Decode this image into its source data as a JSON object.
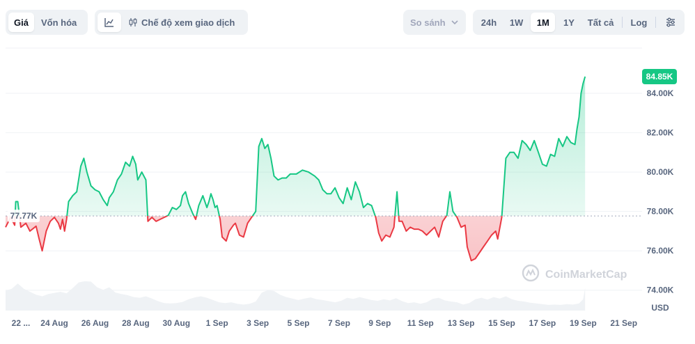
{
  "toolbar": {
    "tabs": [
      {
        "label": "Giá",
        "active": true
      },
      {
        "label": "Vốn hóa",
        "active": false
      }
    ],
    "mode_label": "Chế độ xem giao dịch",
    "compare_label": "So sánh",
    "ranges": [
      {
        "label": "24h",
        "active": false
      },
      {
        "label": "1W",
        "active": false
      },
      {
        "label": "1M",
        "active": true
      },
      {
        "label": "1Y",
        "active": false
      },
      {
        "label": "Tất cả",
        "active": false
      }
    ],
    "log_label": "Log"
  },
  "watermark": "CoinMarketCap",
  "chart_data": {
    "type": "area",
    "currency_label": "USD",
    "baseline_label": "77.77K",
    "baseline": 77770,
    "last_label": "84.85K",
    "last_value": 84850,
    "ylim": [
      73000,
      86300
    ],
    "yticks": [
      {
        "value": 74000,
        "label": "74.00K"
      },
      {
        "value": 76000,
        "label": "76.00K"
      },
      {
        "value": 78000,
        "label": "78.00K"
      },
      {
        "value": 80000,
        "label": "80.00K"
      },
      {
        "value": 82000,
        "label": "82.00K"
      },
      {
        "value": 84000,
        "label": "84.00K"
      }
    ],
    "xticks": [
      {
        "t": 0.5,
        "label": "22 ..."
      },
      {
        "t": 2.4,
        "label": "24 Aug"
      },
      {
        "t": 4.4,
        "label": "26 Aug"
      },
      {
        "t": 6.4,
        "label": "28 Aug"
      },
      {
        "t": 8.4,
        "label": "30 Aug"
      },
      {
        "t": 10.4,
        "label": "1 Sep"
      },
      {
        "t": 12.4,
        "label": "3 Sep"
      },
      {
        "t": 14.4,
        "label": "5 Sep"
      },
      {
        "t": 16.4,
        "label": "7 Sep"
      },
      {
        "t": 18.4,
        "label": "9 Sep"
      },
      {
        "t": 20.4,
        "label": "11 Sep"
      },
      {
        "t": 22.4,
        "label": "13 Sep"
      },
      {
        "t": 24.4,
        "label": "15 Sep"
      },
      {
        "t": 26.4,
        "label": "17 Sep"
      },
      {
        "t": 28.4,
        "label": "19 Sep"
      },
      {
        "t": 30.4,
        "label": "21 Sep"
      }
    ],
    "t_range": [
      0,
      31.3
    ],
    "price": [
      [
        0.0,
        77200
      ],
      [
        0.25,
        77700
      ],
      [
        0.45,
        77300
      ],
      [
        0.5,
        78500
      ],
      [
        0.6,
        78500
      ],
      [
        0.75,
        77200
      ],
      [
        1.0,
        77400
      ],
      [
        1.2,
        77000
      ],
      [
        1.5,
        77250
      ],
      [
        1.65,
        76600
      ],
      [
        1.8,
        76000
      ],
      [
        2.0,
        77000
      ],
      [
        2.2,
        77500
      ],
      [
        2.4,
        77700
      ],
      [
        2.6,
        77400
      ],
      [
        2.7,
        77100
      ],
      [
        2.8,
        77600
      ],
      [
        2.9,
        77000
      ],
      [
        3.0,
        77600
      ],
      [
        3.1,
        78500
      ],
      [
        3.3,
        78800
      ],
      [
        3.5,
        79000
      ],
      [
        3.7,
        80300
      ],
      [
        3.85,
        80700
      ],
      [
        4.0,
        80000
      ],
      [
        4.2,
        79300
      ],
      [
        4.4,
        79100
      ],
      [
        4.6,
        79000
      ],
      [
        4.8,
        78600
      ],
      [
        5.0,
        78300
      ],
      [
        5.1,
        78700
      ],
      [
        5.3,
        79000
      ],
      [
        5.5,
        79600
      ],
      [
        5.7,
        79900
      ],
      [
        5.9,
        80500
      ],
      [
        6.1,
        80300
      ],
      [
        6.25,
        80800
      ],
      [
        6.4,
        80400
      ],
      [
        6.5,
        79600
      ],
      [
        6.7,
        80000
      ],
      [
        6.9,
        79600
      ],
      [
        7.0,
        77500
      ],
      [
        7.2,
        77700
      ],
      [
        7.4,
        77500
      ],
      [
        7.6,
        77600
      ],
      [
        7.8,
        77700
      ],
      [
        8.0,
        77800
      ],
      [
        8.2,
        78200
      ],
      [
        8.4,
        78100
      ],
      [
        8.6,
        78300
      ],
      [
        8.7,
        78800
      ],
      [
        8.85,
        79000
      ],
      [
        9.0,
        78400
      ],
      [
        9.2,
        77900
      ],
      [
        9.35,
        77600
      ],
      [
        9.5,
        78300
      ],
      [
        9.7,
        78800
      ],
      [
        9.9,
        78200
      ],
      [
        10.0,
        78500
      ],
      [
        10.1,
        78900
      ],
      [
        10.2,
        78600
      ],
      [
        10.3,
        78200
      ],
      [
        10.4,
        78300
      ],
      [
        10.55,
        77600
      ],
      [
        10.65,
        76700
      ],
      [
        10.85,
        76500
      ],
      [
        11.0,
        77000
      ],
      [
        11.2,
        77300
      ],
      [
        11.3,
        77400
      ],
      [
        11.5,
        76800
      ],
      [
        11.7,
        76700
      ],
      [
        11.9,
        77400
      ],
      [
        12.1,
        77700
      ],
      [
        12.3,
        78000
      ],
      [
        12.45,
        81300
      ],
      [
        12.6,
        81700
      ],
      [
        12.75,
        81200
      ],
      [
        12.9,
        81400
      ],
      [
        13.05,
        80700
      ],
      [
        13.2,
        79800
      ],
      [
        13.4,
        79600
      ],
      [
        13.6,
        79700
      ],
      [
        13.8,
        79700
      ],
      [
        14.0,
        79900
      ],
      [
        14.3,
        79900
      ],
      [
        14.6,
        80100
      ],
      [
        14.9,
        80000
      ],
      [
        15.2,
        79800
      ],
      [
        15.4,
        79600
      ],
      [
        15.6,
        79100
      ],
      [
        15.8,
        78900
      ],
      [
        16.0,
        78900
      ],
      [
        16.2,
        79200
      ],
      [
        16.4,
        78700
      ],
      [
        16.6,
        78400
      ],
      [
        16.8,
        79200
      ],
      [
        17.0,
        78600
      ],
      [
        17.2,
        79500
      ],
      [
        17.4,
        79000
      ],
      [
        17.6,
        78200
      ],
      [
        17.8,
        78400
      ],
      [
        18.0,
        78300
      ],
      [
        18.2,
        77700
      ],
      [
        18.35,
        76900
      ],
      [
        18.5,
        76500
      ],
      [
        18.7,
        76800
      ],
      [
        18.9,
        76700
      ],
      [
        19.1,
        77200
      ],
      [
        19.25,
        79000
      ],
      [
        19.35,
        77500
      ],
      [
        19.5,
        77500
      ],
      [
        19.7,
        77000
      ],
      [
        19.9,
        77200
      ],
      [
        20.1,
        77100
      ],
      [
        20.3,
        77100
      ],
      [
        20.5,
        77000
      ],
      [
        20.7,
        76800
      ],
      [
        20.9,
        77000
      ],
      [
        21.1,
        77200
      ],
      [
        21.3,
        76700
      ],
      [
        21.5,
        77500
      ],
      [
        21.7,
        77800
      ],
      [
        21.85,
        79000
      ],
      [
        22.0,
        78000
      ],
      [
        22.2,
        77700
      ],
      [
        22.4,
        77200
      ],
      [
        22.6,
        77300
      ],
      [
        22.7,
        76200
      ],
      [
        22.9,
        75500
      ],
      [
        23.1,
        75600
      ],
      [
        23.3,
        75900
      ],
      [
        23.5,
        76200
      ],
      [
        23.7,
        76500
      ],
      [
        23.9,
        76800
      ],
      [
        24.1,
        77000
      ],
      [
        24.2,
        76600
      ],
      [
        24.4,
        77700
      ],
      [
        24.6,
        80700
      ],
      [
        24.8,
        81000
      ],
      [
        25.0,
        81000
      ],
      [
        25.2,
        80700
      ],
      [
        25.4,
        81600
      ],
      [
        25.6,
        81400
      ],
      [
        25.8,
        81100
      ],
      [
        26.0,
        81600
      ],
      [
        26.2,
        81000
      ],
      [
        26.4,
        80400
      ],
      [
        26.6,
        80300
      ],
      [
        26.8,
        80900
      ],
      [
        27.0,
        80800
      ],
      [
        27.2,
        81700
      ],
      [
        27.4,
        81300
      ],
      [
        27.6,
        81800
      ],
      [
        27.8,
        81500
      ],
      [
        28.0,
        81400
      ],
      [
        28.1,
        82200
      ],
      [
        28.2,
        82800
      ],
      [
        28.3,
        84000
      ],
      [
        28.4,
        84500
      ],
      [
        28.5,
        84850
      ]
    ],
    "volume": [
      [
        0.0,
        0.53
      ],
      [
        0.3,
        0.58
      ],
      [
        0.6,
        0.72
      ],
      [
        0.9,
        0.58
      ],
      [
        1.2,
        0.5
      ],
      [
        1.5,
        0.42
      ],
      [
        1.8,
        0.38
      ],
      [
        2.1,
        0.44
      ],
      [
        2.4,
        0.47
      ],
      [
        2.7,
        0.5
      ],
      [
        3.0,
        0.46
      ],
      [
        3.3,
        0.6
      ],
      [
        3.6,
        0.75
      ],
      [
        3.9,
        0.78
      ],
      [
        4.2,
        0.77
      ],
      [
        4.5,
        0.62
      ],
      [
        4.8,
        0.55
      ],
      [
        5.1,
        0.62
      ],
      [
        5.4,
        0.48
      ],
      [
        5.7,
        0.44
      ],
      [
        6.0,
        0.41
      ],
      [
        6.3,
        0.36
      ],
      [
        6.6,
        0.34
      ],
      [
        6.9,
        0.38
      ],
      [
        7.2,
        0.32
      ],
      [
        7.5,
        0.25
      ],
      [
        7.8,
        0.2
      ],
      [
        8.1,
        0.19
      ],
      [
        8.4,
        0.2
      ],
      [
        8.7,
        0.23
      ],
      [
        9.0,
        0.3
      ],
      [
        9.3,
        0.35
      ],
      [
        9.6,
        0.38
      ],
      [
        9.9,
        0.34
      ],
      [
        10.2,
        0.28
      ],
      [
        10.5,
        0.22
      ],
      [
        10.8,
        0.2
      ],
      [
        11.1,
        0.22
      ],
      [
        11.4,
        0.18
      ],
      [
        11.7,
        0.16
      ],
      [
        12.0,
        0.18
      ],
      [
        12.3,
        0.24
      ],
      [
        12.6,
        0.48
      ],
      [
        12.9,
        0.54
      ],
      [
        13.2,
        0.52
      ],
      [
        13.5,
        0.42
      ],
      [
        13.8,
        0.36
      ],
      [
        14.1,
        0.32
      ],
      [
        14.4,
        0.28
      ],
      [
        14.7,
        0.32
      ],
      [
        15.0,
        0.35
      ],
      [
        15.3,
        0.3
      ],
      [
        15.6,
        0.28
      ],
      [
        15.9,
        0.25
      ],
      [
        16.2,
        0.22
      ],
      [
        16.5,
        0.26
      ],
      [
        16.8,
        0.34
      ],
      [
        17.1,
        0.31
      ],
      [
        17.4,
        0.36
      ],
      [
        17.7,
        0.32
      ],
      [
        18.0,
        0.28
      ],
      [
        18.3,
        0.26
      ],
      [
        18.6,
        0.3
      ],
      [
        18.9,
        0.27
      ],
      [
        19.2,
        0.33
      ],
      [
        19.5,
        0.25
      ],
      [
        19.8,
        0.2
      ],
      [
        20.1,
        0.22
      ],
      [
        20.4,
        0.18
      ],
      [
        20.7,
        0.22
      ],
      [
        21.0,
        0.31
      ],
      [
        21.3,
        0.34
      ],
      [
        21.6,
        0.27
      ],
      [
        21.9,
        0.24
      ],
      [
        22.2,
        0.22
      ],
      [
        22.5,
        0.16
      ],
      [
        22.8,
        0.2
      ],
      [
        23.1,
        0.3
      ],
      [
        23.4,
        0.34
      ],
      [
        23.7,
        0.29
      ],
      [
        24.0,
        0.36
      ],
      [
        24.3,
        0.32
      ],
      [
        24.6,
        0.38
      ],
      [
        24.9,
        0.3
      ],
      [
        25.2,
        0.26
      ],
      [
        25.5,
        0.24
      ],
      [
        25.8,
        0.21
      ],
      [
        26.1,
        0.19
      ],
      [
        26.4,
        0.17
      ],
      [
        26.7,
        0.15
      ],
      [
        27.0,
        0.16
      ],
      [
        27.3,
        0.15
      ],
      [
        27.6,
        0.17
      ],
      [
        27.9,
        0.16
      ],
      [
        28.2,
        0.19
      ],
      [
        28.4,
        0.3
      ],
      [
        28.5,
        0.6
      ]
    ]
  }
}
